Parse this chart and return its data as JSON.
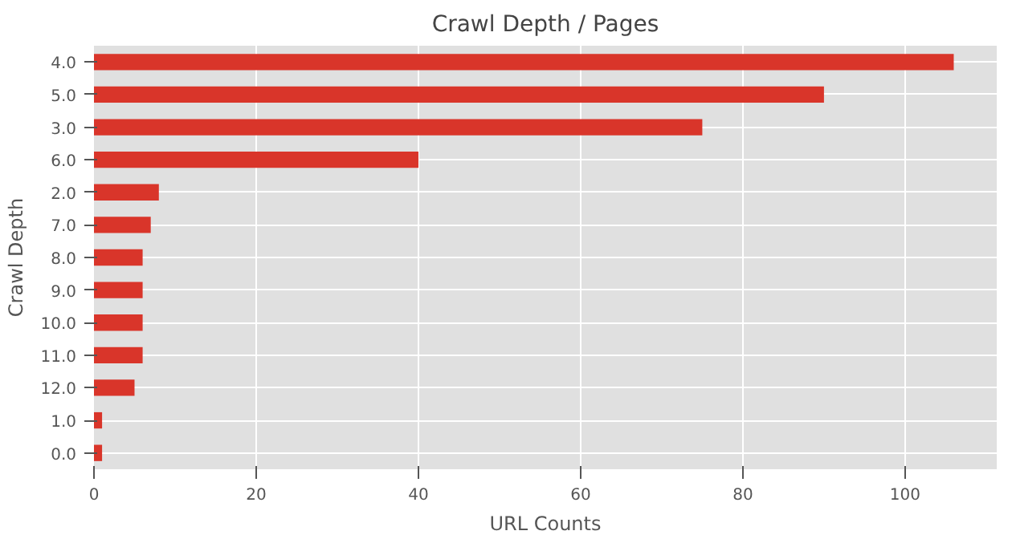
{
  "chart_data": {
    "type": "bar",
    "orientation": "horizontal",
    "title": "Crawl Depth / Pages",
    "xlabel": "URL Counts",
    "ylabel": "Crawl Depth",
    "categories": [
      "4.0",
      "5.0",
      "3.0",
      "6.0",
      "2.0",
      "7.0",
      "8.0",
      "9.0",
      "10.0",
      "11.0",
      "12.0",
      "1.0",
      "0.0"
    ],
    "values": [
      106,
      90,
      75,
      40,
      8,
      7,
      6,
      6,
      6,
      6,
      5,
      1,
      1
    ],
    "color": "#d9352a",
    "xlim": [
      0,
      111.3
    ],
    "xticks": [
      0,
      20,
      40,
      60,
      80,
      100
    ],
    "grid": true
  }
}
